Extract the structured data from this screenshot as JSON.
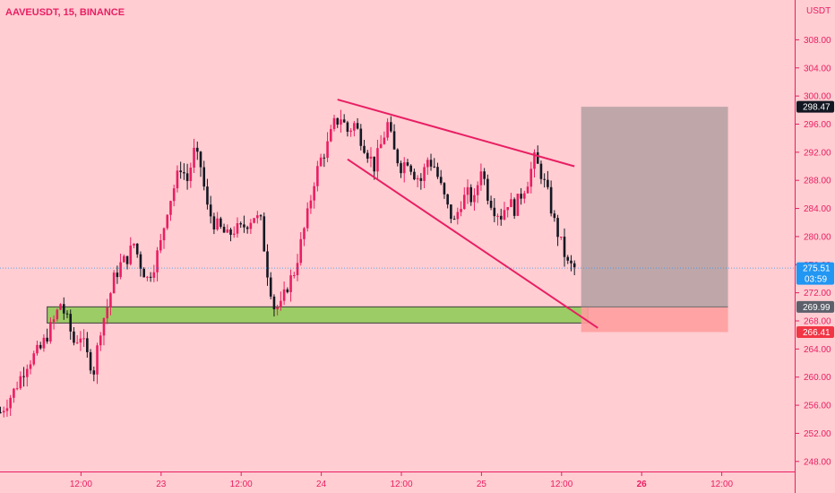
{
  "header": {
    "symbol_line": "AAVEUSDT, 15, BINANCE"
  },
  "price_axis": {
    "currency": "USDT",
    "ticks": [
      {
        "value": 308,
        "label": "308.00"
      },
      {
        "value": 304,
        "label": "304.00"
      },
      {
        "value": 300,
        "label": "300.00"
      },
      {
        "value": 296,
        "label": "296.00"
      },
      {
        "value": 292,
        "label": "292.00"
      },
      {
        "value": 288,
        "label": "288.00"
      },
      {
        "value": 284,
        "label": "284.00"
      },
      {
        "value": 280,
        "label": "280.00"
      },
      {
        "value": 276,
        "label": "276.00"
      },
      {
        "value": 272,
        "label": "272.00"
      },
      {
        "value": 268,
        "label": "268.00"
      },
      {
        "value": 264,
        "label": "264.00"
      },
      {
        "value": 260,
        "label": "260.00"
      },
      {
        "value": 256,
        "label": "256.00"
      },
      {
        "value": 252,
        "label": "252.00"
      },
      {
        "value": 248,
        "label": "248.00"
      }
    ],
    "badges": [
      {
        "name": "target-price-badge",
        "value": 298.47,
        "label": "298.47",
        "bg": "#131722",
        "fg": "#ffffff"
      },
      {
        "name": "last-price-badge",
        "value": 275.51,
        "label": "275.51",
        "sub": "03:59",
        "bg": "#2196f3",
        "fg": "#ffffff"
      },
      {
        "name": "entry-price-badge",
        "value": 269.99,
        "label": "269.99",
        "bg": "#5d606b",
        "fg": "#ffffff"
      },
      {
        "name": "stop-price-badge",
        "value": 266.41,
        "label": "266.41",
        "bg": "#f23645",
        "fg": "#ffffff"
      }
    ]
  },
  "time_axis": {
    "ticks": [
      {
        "t": 12,
        "label": "12:00",
        "bold": false
      },
      {
        "t": 24,
        "label": "23",
        "bold": false
      },
      {
        "t": 36,
        "label": "12:00",
        "bold": false
      },
      {
        "t": 48,
        "label": "24",
        "bold": false
      },
      {
        "t": 60,
        "label": "12:00",
        "bold": false
      },
      {
        "t": 72,
        "label": "25",
        "bold": false
      },
      {
        "t": 84,
        "label": "12:00",
        "bold": false
      },
      {
        "t": 96,
        "label": "26",
        "bold": true
      },
      {
        "t": 108,
        "label": "12:00",
        "bold": false
      }
    ]
  },
  "colors": {
    "background": "#ffcdd2",
    "candle_up": "#e91e63",
    "candle_down": "#131722",
    "trendline": "#e91e63",
    "support_zone": "#9ccc65",
    "target_zone": "#b8a2a4",
    "stop_zone": "#ff9e9e",
    "axis_border": "#e91e63",
    "axis_text": "#e91e63",
    "title_text": "#e91e63"
  },
  "chart_data": {
    "type": "candlestick",
    "symbol": "AAVEUSDT",
    "interval": "15",
    "exchange": "BINANCE",
    "y_range": [
      244,
      312
    ],
    "x_unit": "hours since 22 00:00",
    "x_range": [
      0,
      118
    ],
    "last_price": 275.51,
    "close_path": [
      [
        0,
        255
      ],
      [
        2,
        258
      ],
      [
        4,
        262
      ],
      [
        6,
        264
      ],
      [
        8,
        268
      ],
      [
        9,
        270.5
      ],
      [
        10,
        268
      ],
      [
        11,
        265
      ],
      [
        12,
        266
      ],
      [
        13,
        263
      ],
      [
        14,
        261
      ],
      [
        15,
        267
      ],
      [
        16,
        270
      ],
      [
        17,
        274
      ],
      [
        18,
        276
      ],
      [
        19,
        277
      ],
      [
        20,
        279
      ],
      [
        21,
        276
      ],
      [
        22,
        274
      ],
      [
        23,
        276
      ],
      [
        24,
        279
      ],
      [
        25,
        284
      ],
      [
        26,
        287
      ],
      [
        27,
        290
      ],
      [
        28,
        288
      ],
      [
        29,
        292
      ],
      [
        30,
        290
      ],
      [
        31,
        284
      ],
      [
        32,
        282
      ],
      [
        33,
        281
      ],
      [
        34,
        280
      ],
      [
        35,
        281
      ],
      [
        36,
        281
      ],
      [
        37,
        282
      ],
      [
        38,
        283
      ],
      [
        39,
        282
      ],
      [
        40,
        275
      ],
      [
        41,
        270
      ],
      [
        42,
        270
      ],
      [
        43,
        273
      ],
      [
        44,
        275
      ],
      [
        45,
        279
      ],
      [
        46,
        283
      ],
      [
        47,
        288
      ],
      [
        48,
        291
      ],
      [
        49,
        293
      ],
      [
        50,
        296
      ],
      [
        51,
        297
      ],
      [
        52,
        295
      ],
      [
        53,
        296
      ],
      [
        54,
        294
      ],
      [
        55,
        292
      ],
      [
        56,
        290
      ],
      [
        57,
        293
      ],
      [
        58,
        296
      ],
      [
        59,
        292
      ],
      [
        60,
        290
      ],
      [
        61,
        291
      ],
      [
        62,
        289
      ],
      [
        63,
        288
      ],
      [
        64,
        291
      ],
      [
        65,
        290
      ],
      [
        66,
        287
      ],
      [
        67,
        284
      ],
      [
        68,
        282
      ],
      [
        69,
        285
      ],
      [
        70,
        286
      ],
      [
        71,
        285
      ],
      [
        72,
        290
      ],
      [
        73,
        286
      ],
      [
        74,
        284
      ],
      [
        75,
        283
      ],
      [
        76,
        285
      ],
      [
        77,
        284
      ],
      [
        78,
        286
      ],
      [
        79,
        288
      ],
      [
        80,
        291
      ],
      [
        81,
        289
      ],
      [
        82,
        286
      ],
      [
        83,
        282
      ],
      [
        84,
        279
      ],
      [
        85,
        276
      ],
      [
        86,
        275.5
      ]
    ],
    "trendlines": [
      {
        "name": "wedge-upper-line",
        "from": [
          50.5,
          299.5
        ],
        "to": [
          86,
          290
        ]
      },
      {
        "name": "wedge-lower-line",
        "from": [
          52,
          291
        ],
        "to": [
          89.5,
          267
        ]
      }
    ],
    "support_zone": {
      "t0": 7,
      "t1": 88,
      "low": 267.7,
      "high": 270
    }
  },
  "position": {
    "t0": 87,
    "t1": 109,
    "target": 298.47,
    "entry": 269.99,
    "stop": 266.41
  }
}
